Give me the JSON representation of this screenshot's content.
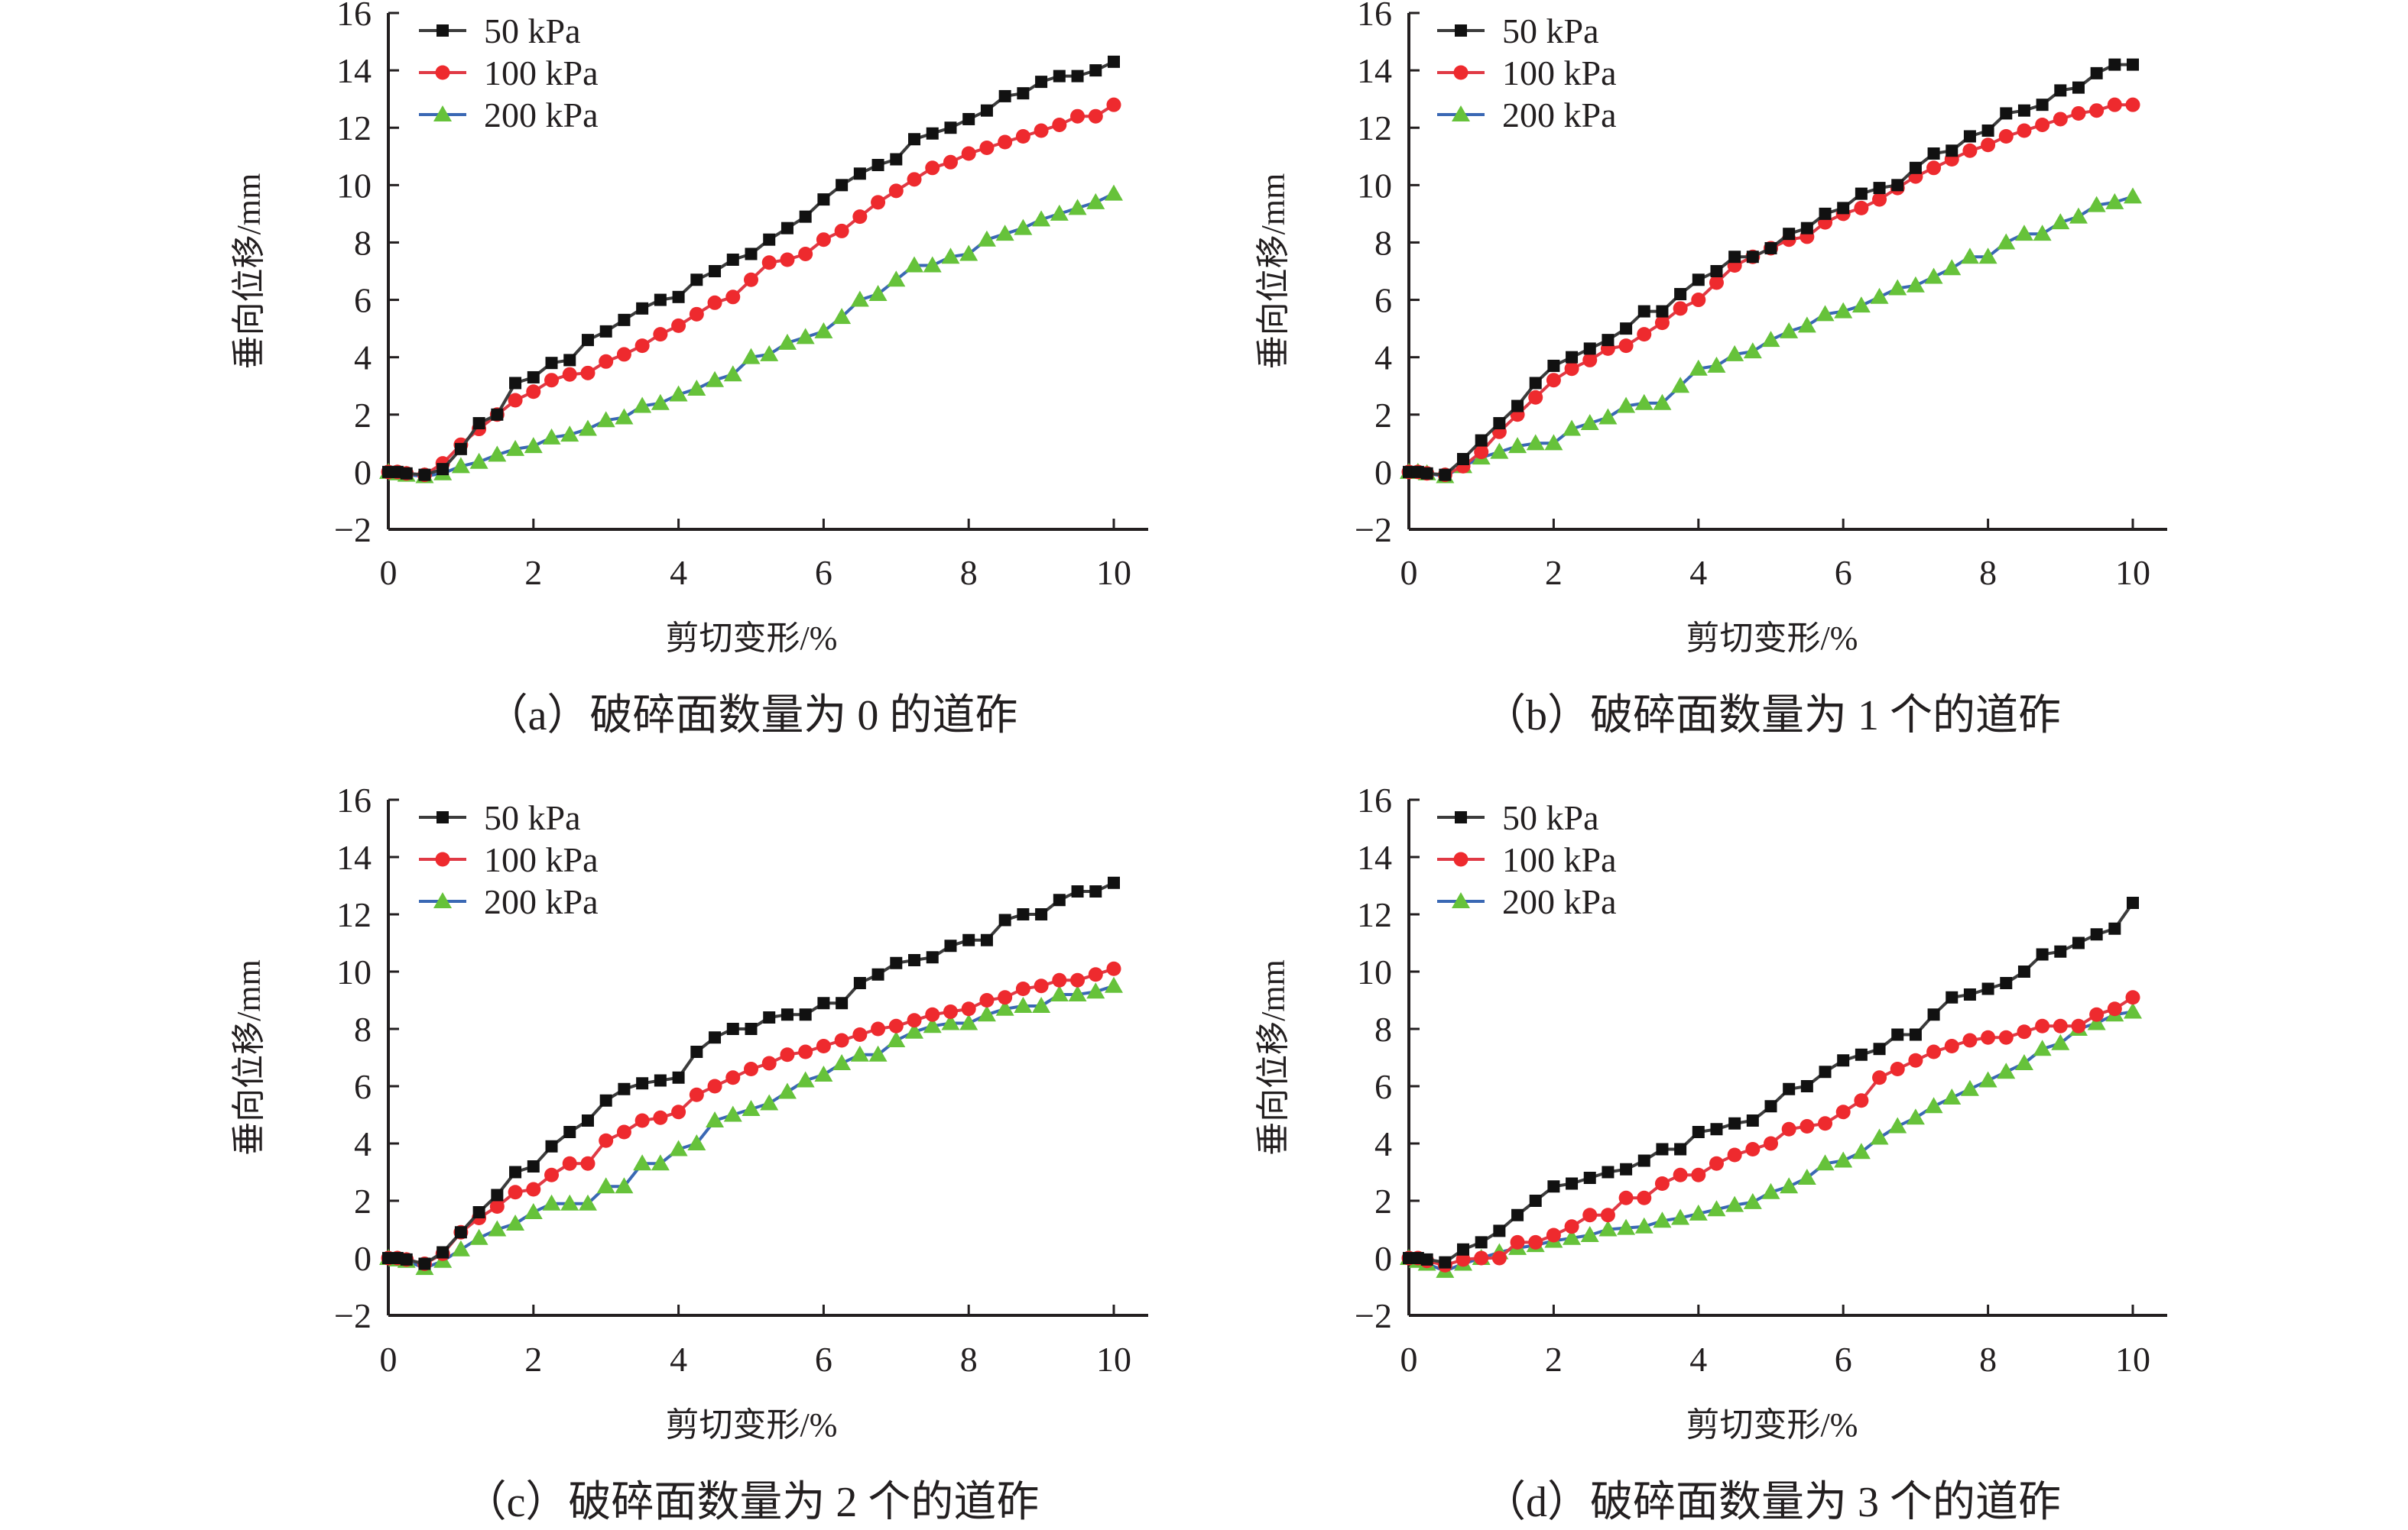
{
  "figure": {
    "x_common": [
      0,
      0.125,
      0.25,
      0.5,
      0.75,
      1.0,
      1.25,
      1.5,
      1.75,
      2.0,
      2.25,
      2.5,
      2.75,
      3.0,
      3.25,
      3.5,
      3.75,
      4.0,
      4.25,
      4.5,
      4.75,
      5.0,
      5.25,
      5.5,
      5.75,
      6.0,
      6.25,
      6.5,
      6.75,
      7.0,
      7.25,
      7.5,
      7.75,
      8.0,
      8.25,
      8.5,
      8.75,
      9.0,
      9.25,
      9.5,
      9.75,
      10.0
    ]
  },
  "chart_data": [
    {
      "type": "line",
      "panel": "a",
      "caption": "（a）破碎面数量为 0 的道砟",
      "title": "",
      "xlabel": "剪切变形/%",
      "ylabel": "垂向位移/mm",
      "xlim": [
        0,
        10
      ],
      "ylim": [
        -2,
        16
      ],
      "xticks": [
        "0",
        "2",
        "4",
        "6",
        "8",
        "10"
      ],
      "yticks": [
        "−2",
        "0",
        "2",
        "4",
        "6",
        "8",
        "10",
        "12",
        "14",
        "16"
      ],
      "grid": false,
      "legend": "top-left",
      "series": [
        {
          "name": "50 kPa",
          "color": "#3c3c3c",
          "marker": "square",
          "marker_color": "#111111",
          "values": [
            0,
            0,
            -0.05,
            -0.1,
            0.1,
            0.8,
            1.7,
            2.0,
            3.1,
            3.3,
            3.8,
            3.9,
            4.6,
            4.9,
            5.3,
            5.7,
            6.0,
            6.1,
            6.7,
            7.0,
            7.4,
            7.6,
            8.1,
            8.5,
            8.9,
            9.5,
            10.0,
            10.4,
            10.7,
            10.9,
            11.6,
            11.8,
            12.0,
            12.3,
            12.6,
            13.1,
            13.2,
            13.6,
            13.8,
            13.8,
            14.0,
            14.3
          ]
        },
        {
          "name": "100 kPa",
          "color": "#e03a45",
          "marker": "circle",
          "marker_color": "#ee2a2e",
          "values": [
            0,
            0,
            -0.05,
            -0.1,
            0.3,
            0.95,
            1.5,
            2.0,
            2.5,
            2.8,
            3.2,
            3.4,
            3.45,
            3.85,
            4.1,
            4.4,
            4.8,
            5.1,
            5.5,
            5.9,
            6.1,
            6.7,
            7.3,
            7.4,
            7.6,
            8.1,
            8.4,
            8.9,
            9.4,
            9.8,
            10.2,
            10.6,
            10.8,
            11.1,
            11.3,
            11.5,
            11.7,
            11.9,
            12.1,
            12.4,
            12.4,
            12.8
          ]
        },
        {
          "name": "200 kPa",
          "color": "#3a68b4",
          "marker": "triangle",
          "marker_color": "#66c23a",
          "values": [
            0,
            -0.05,
            -0.1,
            -0.15,
            -0.05,
            0.2,
            0.35,
            0.6,
            0.8,
            0.9,
            1.2,
            1.3,
            1.5,
            1.8,
            1.9,
            2.3,
            2.4,
            2.7,
            2.9,
            3.2,
            3.4,
            4.0,
            4.1,
            4.5,
            4.7,
            4.9,
            5.4,
            6.0,
            6.2,
            6.7,
            7.2,
            7.2,
            7.5,
            7.6,
            8.1,
            8.3,
            8.5,
            8.8,
            9.0,
            9.2,
            9.4,
            9.7
          ]
        }
      ]
    },
    {
      "type": "line",
      "panel": "b",
      "caption": "（b）破碎面数量为 1 个的道砟",
      "title": "",
      "xlabel": "剪切变形/%",
      "ylabel": "垂向位移/mm",
      "xlim": [
        0,
        10
      ],
      "ylim": [
        -2,
        16
      ],
      "xticks": [
        "0",
        "2",
        "4",
        "6",
        "8",
        "10"
      ],
      "yticks": [
        "−2",
        "0",
        "2",
        "4",
        "6",
        "8",
        "10",
        "12",
        "14",
        "16"
      ],
      "grid": false,
      "legend": "top-left",
      "series": [
        {
          "name": "50 kPa",
          "color": "#3c3c3c",
          "marker": "square",
          "marker_color": "#111111",
          "values": [
            0,
            0,
            -0.05,
            -0.1,
            0.45,
            1.1,
            1.7,
            2.3,
            3.1,
            3.7,
            4.0,
            4.3,
            4.6,
            5.0,
            5.6,
            5.6,
            6.2,
            6.7,
            7.0,
            7.5,
            7.5,
            7.8,
            8.3,
            8.5,
            9.0,
            9.2,
            9.7,
            9.9,
            10.0,
            10.6,
            11.1,
            11.2,
            11.7,
            11.9,
            12.5,
            12.6,
            12.8,
            13.3,
            13.4,
            13.9,
            14.2,
            14.2
          ]
        },
        {
          "name": "100 kPa",
          "color": "#e03a45",
          "marker": "circle",
          "marker_color": "#ee2a2e",
          "values": [
            0,
            0,
            -0.05,
            -0.1,
            0.2,
            0.7,
            1.4,
            2.0,
            2.6,
            3.2,
            3.6,
            3.9,
            4.3,
            4.4,
            4.8,
            5.2,
            5.7,
            6.0,
            6.6,
            7.2,
            7.5,
            7.8,
            8.1,
            8.2,
            8.7,
            9.0,
            9.2,
            9.5,
            9.9,
            10.3,
            10.6,
            10.9,
            11.2,
            11.4,
            11.7,
            11.9,
            12.1,
            12.3,
            12.5,
            12.6,
            12.8,
            12.8
          ]
        },
        {
          "name": "200 kPa",
          "color": "#3a68b4",
          "marker": "triangle",
          "marker_color": "#66c23a",
          "values": [
            0,
            0,
            -0.05,
            -0.15,
            0.2,
            0.5,
            0.7,
            0.9,
            1.0,
            1.0,
            1.5,
            1.7,
            1.9,
            2.3,
            2.4,
            2.4,
            3.0,
            3.6,
            3.7,
            4.1,
            4.2,
            4.6,
            4.9,
            5.1,
            5.5,
            5.6,
            5.8,
            6.1,
            6.4,
            6.5,
            6.8,
            7.1,
            7.5,
            7.5,
            8.0,
            8.3,
            8.3,
            8.7,
            8.9,
            9.3,
            9.4,
            9.6
          ]
        }
      ]
    },
    {
      "type": "line",
      "panel": "c",
      "caption": "（c）破碎面数量为 2 个的道砟",
      "title": "",
      "xlabel": "剪切变形/%",
      "ylabel": "垂向位移/mm",
      "xlim": [
        0,
        10
      ],
      "ylim": [
        -2,
        16
      ],
      "xticks": [
        "0",
        "2",
        "4",
        "6",
        "8",
        "10"
      ],
      "yticks": [
        "−2",
        "0",
        "2",
        "4",
        "6",
        "8",
        "10",
        "12",
        "14",
        "16"
      ],
      "grid": false,
      "legend": "top-left",
      "series": [
        {
          "name": "50 kPa",
          "color": "#3c3c3c",
          "marker": "square",
          "marker_color": "#111111",
          "values": [
            0,
            0,
            -0.05,
            -0.2,
            0.2,
            0.9,
            1.6,
            2.2,
            3.0,
            3.2,
            3.9,
            4.4,
            4.8,
            5.5,
            5.9,
            6.1,
            6.2,
            6.3,
            7.2,
            7.7,
            8.0,
            8.0,
            8.4,
            8.5,
            8.5,
            8.9,
            8.9,
            9.6,
            9.9,
            10.3,
            10.4,
            10.5,
            10.9,
            11.1,
            11.1,
            11.8,
            12.0,
            12.0,
            12.5,
            12.8,
            12.8,
            13.1
          ]
        },
        {
          "name": "100 kPa",
          "color": "#e03a45",
          "marker": "circle",
          "marker_color": "#ee2a2e",
          "values": [
            0,
            0,
            -0.05,
            -0.2,
            0.15,
            0.9,
            1.4,
            1.8,
            2.3,
            2.4,
            2.9,
            3.3,
            3.3,
            4.1,
            4.4,
            4.8,
            4.9,
            5.1,
            5.7,
            6.0,
            6.3,
            6.6,
            6.8,
            7.1,
            7.2,
            7.4,
            7.6,
            7.8,
            8.0,
            8.1,
            8.3,
            8.5,
            8.6,
            8.7,
            9.0,
            9.1,
            9.4,
            9.5,
            9.7,
            9.7,
            9.9,
            10.1
          ]
        },
        {
          "name": "200 kPa",
          "color": "#3a68b4",
          "marker": "triangle",
          "marker_color": "#66c23a",
          "values": [
            0,
            -0.05,
            -0.1,
            -0.35,
            -0.1,
            0.3,
            0.7,
            1.0,
            1.2,
            1.6,
            1.9,
            1.9,
            1.9,
            2.5,
            2.5,
            3.3,
            3.3,
            3.8,
            4.0,
            4.8,
            5.0,
            5.2,
            5.4,
            5.8,
            6.2,
            6.4,
            6.8,
            7.1,
            7.1,
            7.6,
            7.9,
            8.1,
            8.2,
            8.2,
            8.5,
            8.7,
            8.8,
            8.8,
            9.2,
            9.2,
            9.3,
            9.5
          ]
        }
      ]
    },
    {
      "type": "line",
      "panel": "d",
      "caption": "（d）破碎面数量为 3 个的道砟",
      "title": "",
      "xlabel": "剪切变形/%",
      "ylabel": "垂向位移/mm",
      "xlim": [
        0,
        10
      ],
      "ylim": [
        -2,
        16
      ],
      "xticks": [
        "0",
        "2",
        "4",
        "6",
        "8",
        "10"
      ],
      "yticks": [
        "−2",
        "0",
        "2",
        "4",
        "6",
        "8",
        "10",
        "12",
        "14",
        "16"
      ],
      "grid": false,
      "legend": "top-left",
      "series": [
        {
          "name": "50 kPa",
          "color": "#3c3c3c",
          "marker": "square",
          "marker_color": "#111111",
          "values": [
            0,
            0,
            -0.05,
            -0.15,
            0.3,
            0.55,
            0.95,
            1.5,
            2.0,
            2.5,
            2.6,
            2.8,
            3.0,
            3.1,
            3.4,
            3.8,
            3.8,
            4.4,
            4.5,
            4.7,
            4.8,
            5.3,
            5.9,
            6.0,
            6.5,
            6.9,
            7.1,
            7.3,
            7.8,
            7.8,
            8.5,
            9.1,
            9.2,
            9.4,
            9.6,
            10.0,
            10.6,
            10.7,
            11.0,
            11.3,
            11.5,
            12.4
          ]
        },
        {
          "name": "100 kPa",
          "color": "#e03a45",
          "marker": "circle",
          "marker_color": "#ee2a2e",
          "values": [
            0,
            0,
            -0.1,
            -0.25,
            -0.05,
            0.0,
            0.0,
            0.55,
            0.55,
            0.8,
            1.1,
            1.5,
            1.5,
            2.1,
            2.1,
            2.6,
            2.9,
            2.9,
            3.3,
            3.6,
            3.8,
            4.0,
            4.5,
            4.6,
            4.7,
            5.1,
            5.5,
            6.3,
            6.6,
            6.9,
            7.2,
            7.4,
            7.6,
            7.7,
            7.7,
            7.9,
            8.1,
            8.1,
            8.1,
            8.5,
            8.7,
            9.1
          ]
        },
        {
          "name": "200 kPa",
          "color": "#3a68b4",
          "marker": "triangle",
          "marker_color": "#66c23a",
          "values": [
            0,
            -0.1,
            -0.2,
            -0.45,
            -0.2,
            0.0,
            0.2,
            0.35,
            0.45,
            0.6,
            0.7,
            0.8,
            1.0,
            1.05,
            1.1,
            1.3,
            1.4,
            1.55,
            1.7,
            1.85,
            1.95,
            2.3,
            2.5,
            2.8,
            3.3,
            3.4,
            3.7,
            4.2,
            4.6,
            4.9,
            5.3,
            5.6,
            5.9,
            6.2,
            6.5,
            6.8,
            7.3,
            7.5,
            8.0,
            8.2,
            8.5,
            8.6
          ]
        }
      ]
    }
  ]
}
